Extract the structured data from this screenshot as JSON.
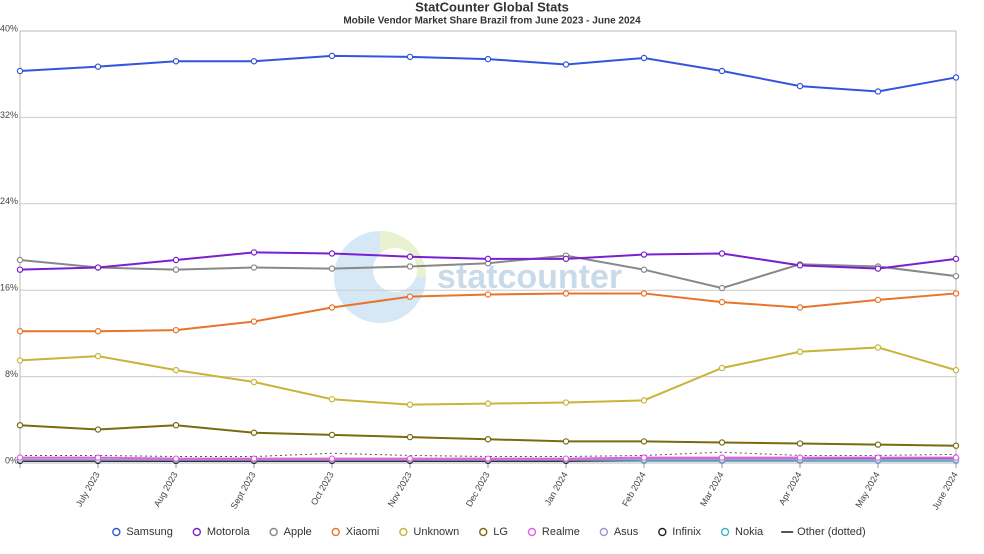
{
  "chart_data": {
    "type": "line",
    "title": "StatCounter Global Stats",
    "subtitle": "Mobile Vendor Market Share Brazil from June 2023 - June 2024",
    "watermark": "statcounter",
    "categories": [
      null,
      "July 2023",
      "Aug 2023",
      "Sept 2023",
      "Oct 2023",
      "Nov 2023",
      "Dec 2023",
      "Jan 2024",
      "Feb 2024",
      "Mar 2024",
      "Apr 2024",
      "May 2024",
      "June 2024"
    ],
    "ylim": [
      0,
      40
    ],
    "yticks": [
      {
        "value": 0,
        "label": "0%"
      },
      {
        "value": 8,
        "label": "8%"
      },
      {
        "value": 16,
        "label": "16%"
      },
      {
        "value": 24,
        "label": "24%"
      },
      {
        "value": 32,
        "label": "32%"
      },
      {
        "value": 40,
        "label": "40%"
      }
    ],
    "grid": true,
    "legend": "bottom",
    "series": [
      {
        "name": "Samsung",
        "color": "#3355dd",
        "values": [
          36.3,
          36.7,
          37.2,
          37.2,
          37.7,
          37.6,
          37.4,
          36.9,
          37.5,
          36.3,
          34.9,
          34.4,
          35.7
        ]
      },
      {
        "name": "Motorola",
        "color": "#7a1fd1",
        "values": [
          17.9,
          18.1,
          18.8,
          19.5,
          19.4,
          19.1,
          18.9,
          18.9,
          19.3,
          19.4,
          18.3,
          18.0,
          18.9
        ]
      },
      {
        "name": "Apple",
        "color": "#888888",
        "values": [
          18.8,
          18.1,
          17.9,
          18.1,
          18.0,
          18.2,
          18.5,
          19.2,
          17.9,
          16.2,
          18.4,
          18.2,
          17.3
        ]
      },
      {
        "name": "Xiaomi",
        "color": "#e8742a",
        "values": [
          12.2,
          12.2,
          12.3,
          13.1,
          14.4,
          15.4,
          15.6,
          15.7,
          15.7,
          14.9,
          14.4,
          15.1,
          15.7
        ]
      },
      {
        "name": "Unknown",
        "color": "#c8b438",
        "values": [
          9.5,
          9.9,
          8.6,
          7.5,
          5.9,
          5.4,
          5.5,
          5.6,
          5.8,
          8.8,
          10.3,
          10.7,
          8.6
        ]
      },
      {
        "name": "LG",
        "color": "#7a6a10",
        "values": [
          3.5,
          3.1,
          3.5,
          2.8,
          2.6,
          2.4,
          2.2,
          2.0,
          2.0,
          1.9,
          1.8,
          1.7,
          1.6
        ]
      },
      {
        "name": "Realme",
        "color": "#e060e0",
        "values": [
          0.5,
          0.5,
          0.4,
          0.4,
          0.4,
          0.4,
          0.4,
          0.4,
          0.5,
          0.5,
          0.5,
          0.5,
          0.5
        ]
      },
      {
        "name": "Asus",
        "color": "#9999cc",
        "values": [
          0.3,
          0.3,
          0.3,
          0.3,
          0.3,
          0.3,
          0.3,
          0.3,
          0.3,
          0.3,
          0.3,
          0.3,
          0.3
        ]
      },
      {
        "name": "Infinix",
        "color": "#222222",
        "values": [
          0.2,
          0.2,
          0.2,
          0.2,
          0.2,
          0.2,
          0.2,
          0.2,
          0.3,
          0.3,
          0.3,
          0.4,
          0.4
        ]
      },
      {
        "name": "Nokia",
        "color": "#3fb4c8",
        "values": [
          0.2,
          0.2,
          0.2,
          0.2,
          0.2,
          0.2,
          0.2,
          0.2,
          0.2,
          0.2,
          0.2,
          0.2,
          0.2
        ]
      },
      {
        "name": "Other (dotted)",
        "color": "#555555",
        "dash": "dotted",
        "values": [
          0.7,
          0.7,
          0.6,
          0.6,
          0.9,
          0.7,
          0.6,
          0.6,
          0.7,
          1.0,
          0.7,
          0.7,
          0.8
        ]
      }
    ]
  }
}
